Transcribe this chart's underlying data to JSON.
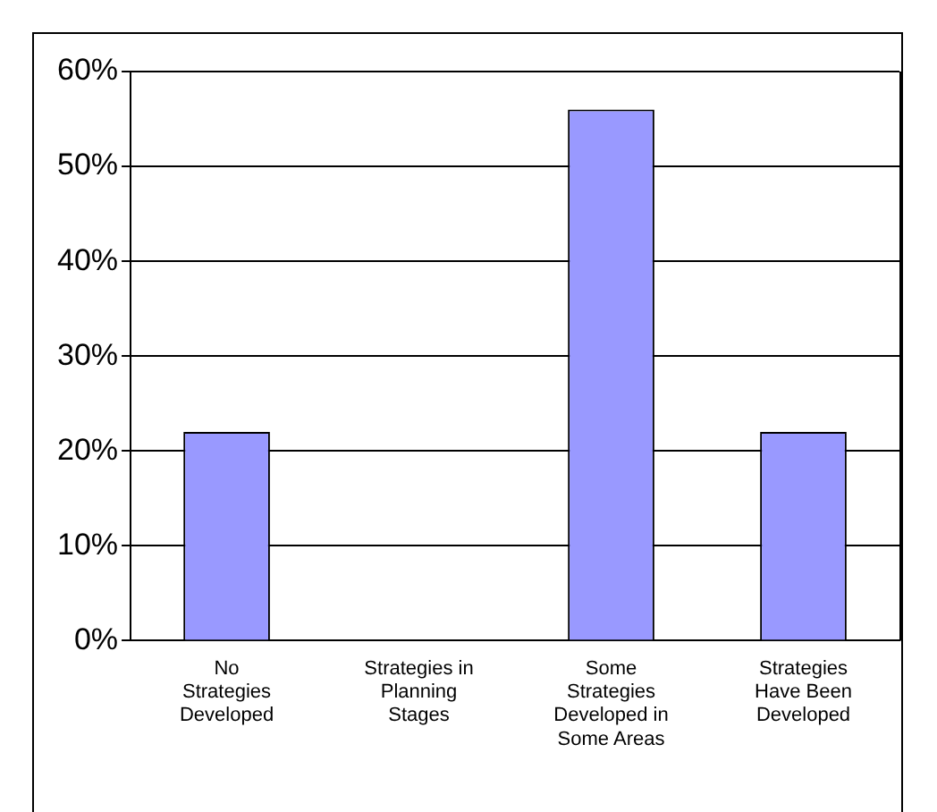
{
  "chart_data": {
    "type": "bar",
    "categories": [
      "No Strategies Developed",
      "Strategies in Planning Stages",
      "Some Strategies Developed in Some Areas",
      "Strategies Have Been Developed"
    ],
    "values": [
      22,
      0,
      56,
      22
    ],
    "color": "#9999ff",
    "ylim": [
      0,
      60
    ],
    "yticks": [
      {
        "value": 0,
        "label": "0%"
      },
      {
        "value": 10,
        "label": "10%"
      },
      {
        "value": 20,
        "label": "20%"
      },
      {
        "value": 30,
        "label": "30%"
      },
      {
        "value": 40,
        "label": "40%"
      },
      {
        "value": 50,
        "label": "50%"
      },
      {
        "value": 60,
        "label": "60%"
      }
    ],
    "grid": "y"
  }
}
